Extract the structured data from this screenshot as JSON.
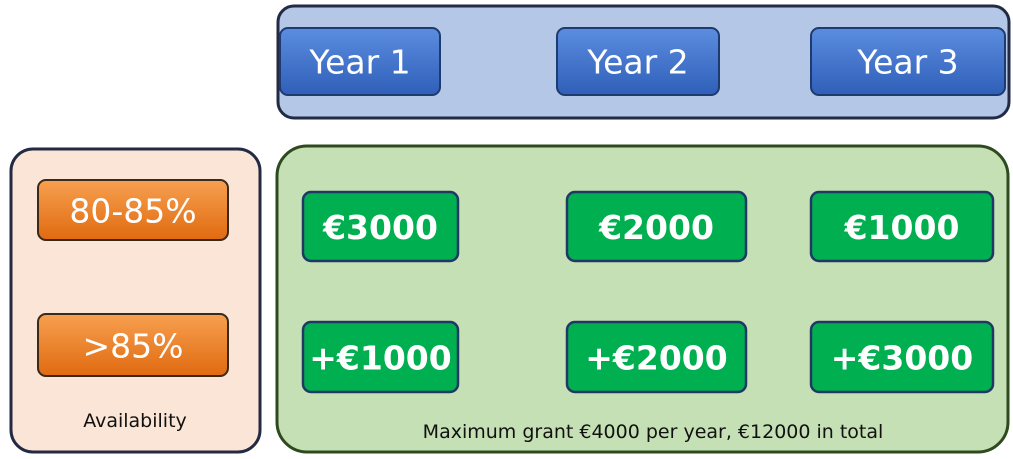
{
  "year_headers": {
    "labels": [
      "Year 1",
      "Year 2",
      "Year 3"
    ]
  },
  "availability": {
    "levels": [
      "80-85%",
      ">85%"
    ],
    "label": "Availability"
  },
  "grants": {
    "rows": [
      [
        "€3000",
        "€2000",
        "€1000"
      ],
      [
        "+€1000",
        "+€2000",
        "+€3000"
      ]
    ],
    "note": "Maximum grant €4000 per year, €12000 in total"
  }
}
